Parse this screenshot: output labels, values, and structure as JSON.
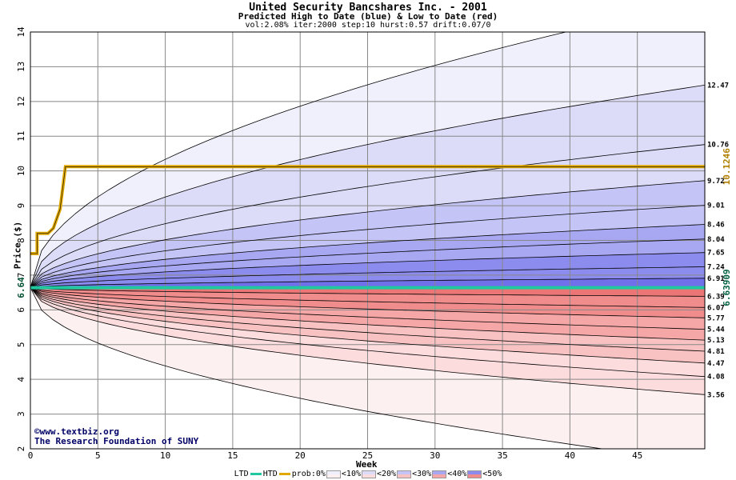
{
  "header": {
    "title": "United Security Bancshares Inc. - 2001",
    "subtitle": "Predicted High to Date (blue) &  Low to Date (red)",
    "params": "vol:2.08% iter:2000 step:10 hurst:0.57 drift:0.07/0"
  },
  "credit": {
    "line1": "©www.textbiz.org",
    "line2": "The Research Foundation of SUNY"
  },
  "legend": {
    "ltd": "LTD",
    "htd": "HTD",
    "prob0": "prob:0%",
    "p10": "<10%",
    "p20": "<20%",
    "p30": "<30%",
    "p40": "<40%",
    "p50": "<50%"
  },
  "colors": {
    "htd": "#e0a800",
    "ltd": "#20c8a0",
    "blue_bands": [
      "#f0f0fc",
      "#dcdcf8",
      "#c4c4f6",
      "#a8a8f2",
      "#8c8cee",
      "#7070ea"
    ],
    "red_bands": [
      "#fdf0f0",
      "#fcdcdc",
      "#f9c2c2",
      "#f5a6a6",
      "#f08c8c",
      "#ec7676"
    ]
  },
  "chart_data": {
    "type": "area",
    "xlabel": "Week",
    "ylabel": "Price ($)",
    "xlim": [
      0,
      50
    ],
    "ylim": [
      2,
      14
    ],
    "xticks": [
      0,
      5,
      10,
      15,
      20,
      25,
      30,
      35,
      40,
      45
    ],
    "yticks": [
      2,
      3,
      4,
      5,
      6,
      7,
      8,
      9,
      10,
      11,
      12,
      13,
      14
    ],
    "grid": true,
    "start_price": 6.64,
    "start_label": "6.64",
    "high_to_date": {
      "value": 10.1246,
      "label": "10.1246"
    },
    "low_to_date": {
      "value": 6.63909,
      "label": "6.63909"
    },
    "htd_path": [
      [
        0,
        7.62
      ],
      [
        0.5,
        7.62
      ],
      [
        0.5,
        8.2
      ],
      [
        1.3,
        8.2
      ],
      [
        1.7,
        8.35
      ],
      [
        2.2,
        8.9
      ],
      [
        2.6,
        10.1246
      ],
      [
        50,
        10.1246
      ]
    ],
    "high_quantiles": [
      14.9,
      12.47,
      10.76,
      9.72,
      9.01,
      8.46,
      8.04,
      7.65,
      7.24,
      6.91
    ],
    "high_labels": [
      "12.47",
      "10.76",
      "9.72",
      "9.01",
      "8.46",
      "8.04",
      "7.65",
      "7.24",
      "6.91"
    ],
    "low_quantiles": [
      6.39,
      6.07,
      5.77,
      5.44,
      5.13,
      4.81,
      4.47,
      4.08,
      3.56,
      1.6
    ],
    "low_labels": [
      "6.39",
      "6.07",
      "5.77",
      "5.44",
      "5.13",
      "4.81",
      "4.47",
      "4.08",
      "3.56"
    ]
  }
}
